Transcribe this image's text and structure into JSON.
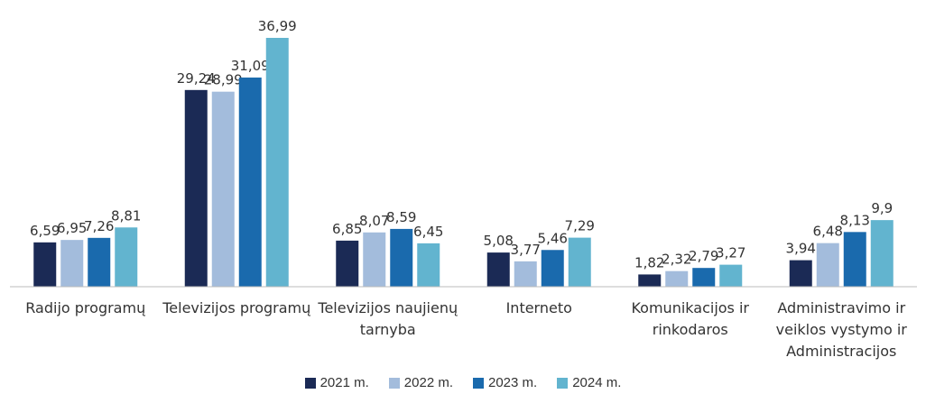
{
  "chart_data": {
    "type": "bar",
    "categories": [
      "Radijo programų",
      "Televizijos programų",
      "Televizijos naujienų tarnyba",
      "Interneto",
      "Komunikacijos ir rinkodaros",
      "Administravimo ir veiklos vystymo ir Administracijos"
    ],
    "series": [
      {
        "name": "2021 m.",
        "color": "#1b2a55",
        "values": [
          6.59,
          29.24,
          6.85,
          5.08,
          1.82,
          3.94
        ],
        "value_labels": [
          "6,59",
          "29,24",
          "6,85",
          "5,08",
          "1,82",
          "3,94"
        ]
      },
      {
        "name": "2022 m.",
        "color": "#a3bcdc",
        "values": [
          6.95,
          28.99,
          8.07,
          3.77,
          2.32,
          6.48
        ],
        "value_labels": [
          "6,95",
          "28,99",
          "8,07",
          "3,77",
          "2,32",
          "6,48"
        ]
      },
      {
        "name": "2023 m.",
        "color": "#1a6aad",
        "values": [
          7.26,
          31.09,
          8.59,
          5.46,
          2.79,
          8.13
        ],
        "value_labels": [
          "7,26",
          "31,09",
          "8,59",
          "5,46",
          "2,79",
          "8,13"
        ]
      },
      {
        "name": "2024 m.",
        "color": "#62b4cf",
        "values": [
          8.81,
          36.99,
          6.45,
          7.29,
          3.27,
          9.9
        ],
        "value_labels": [
          "8,81",
          "36,99",
          "6,45",
          "7,29",
          "3,27",
          "9,9"
        ]
      }
    ],
    "legend": "bottom"
  }
}
